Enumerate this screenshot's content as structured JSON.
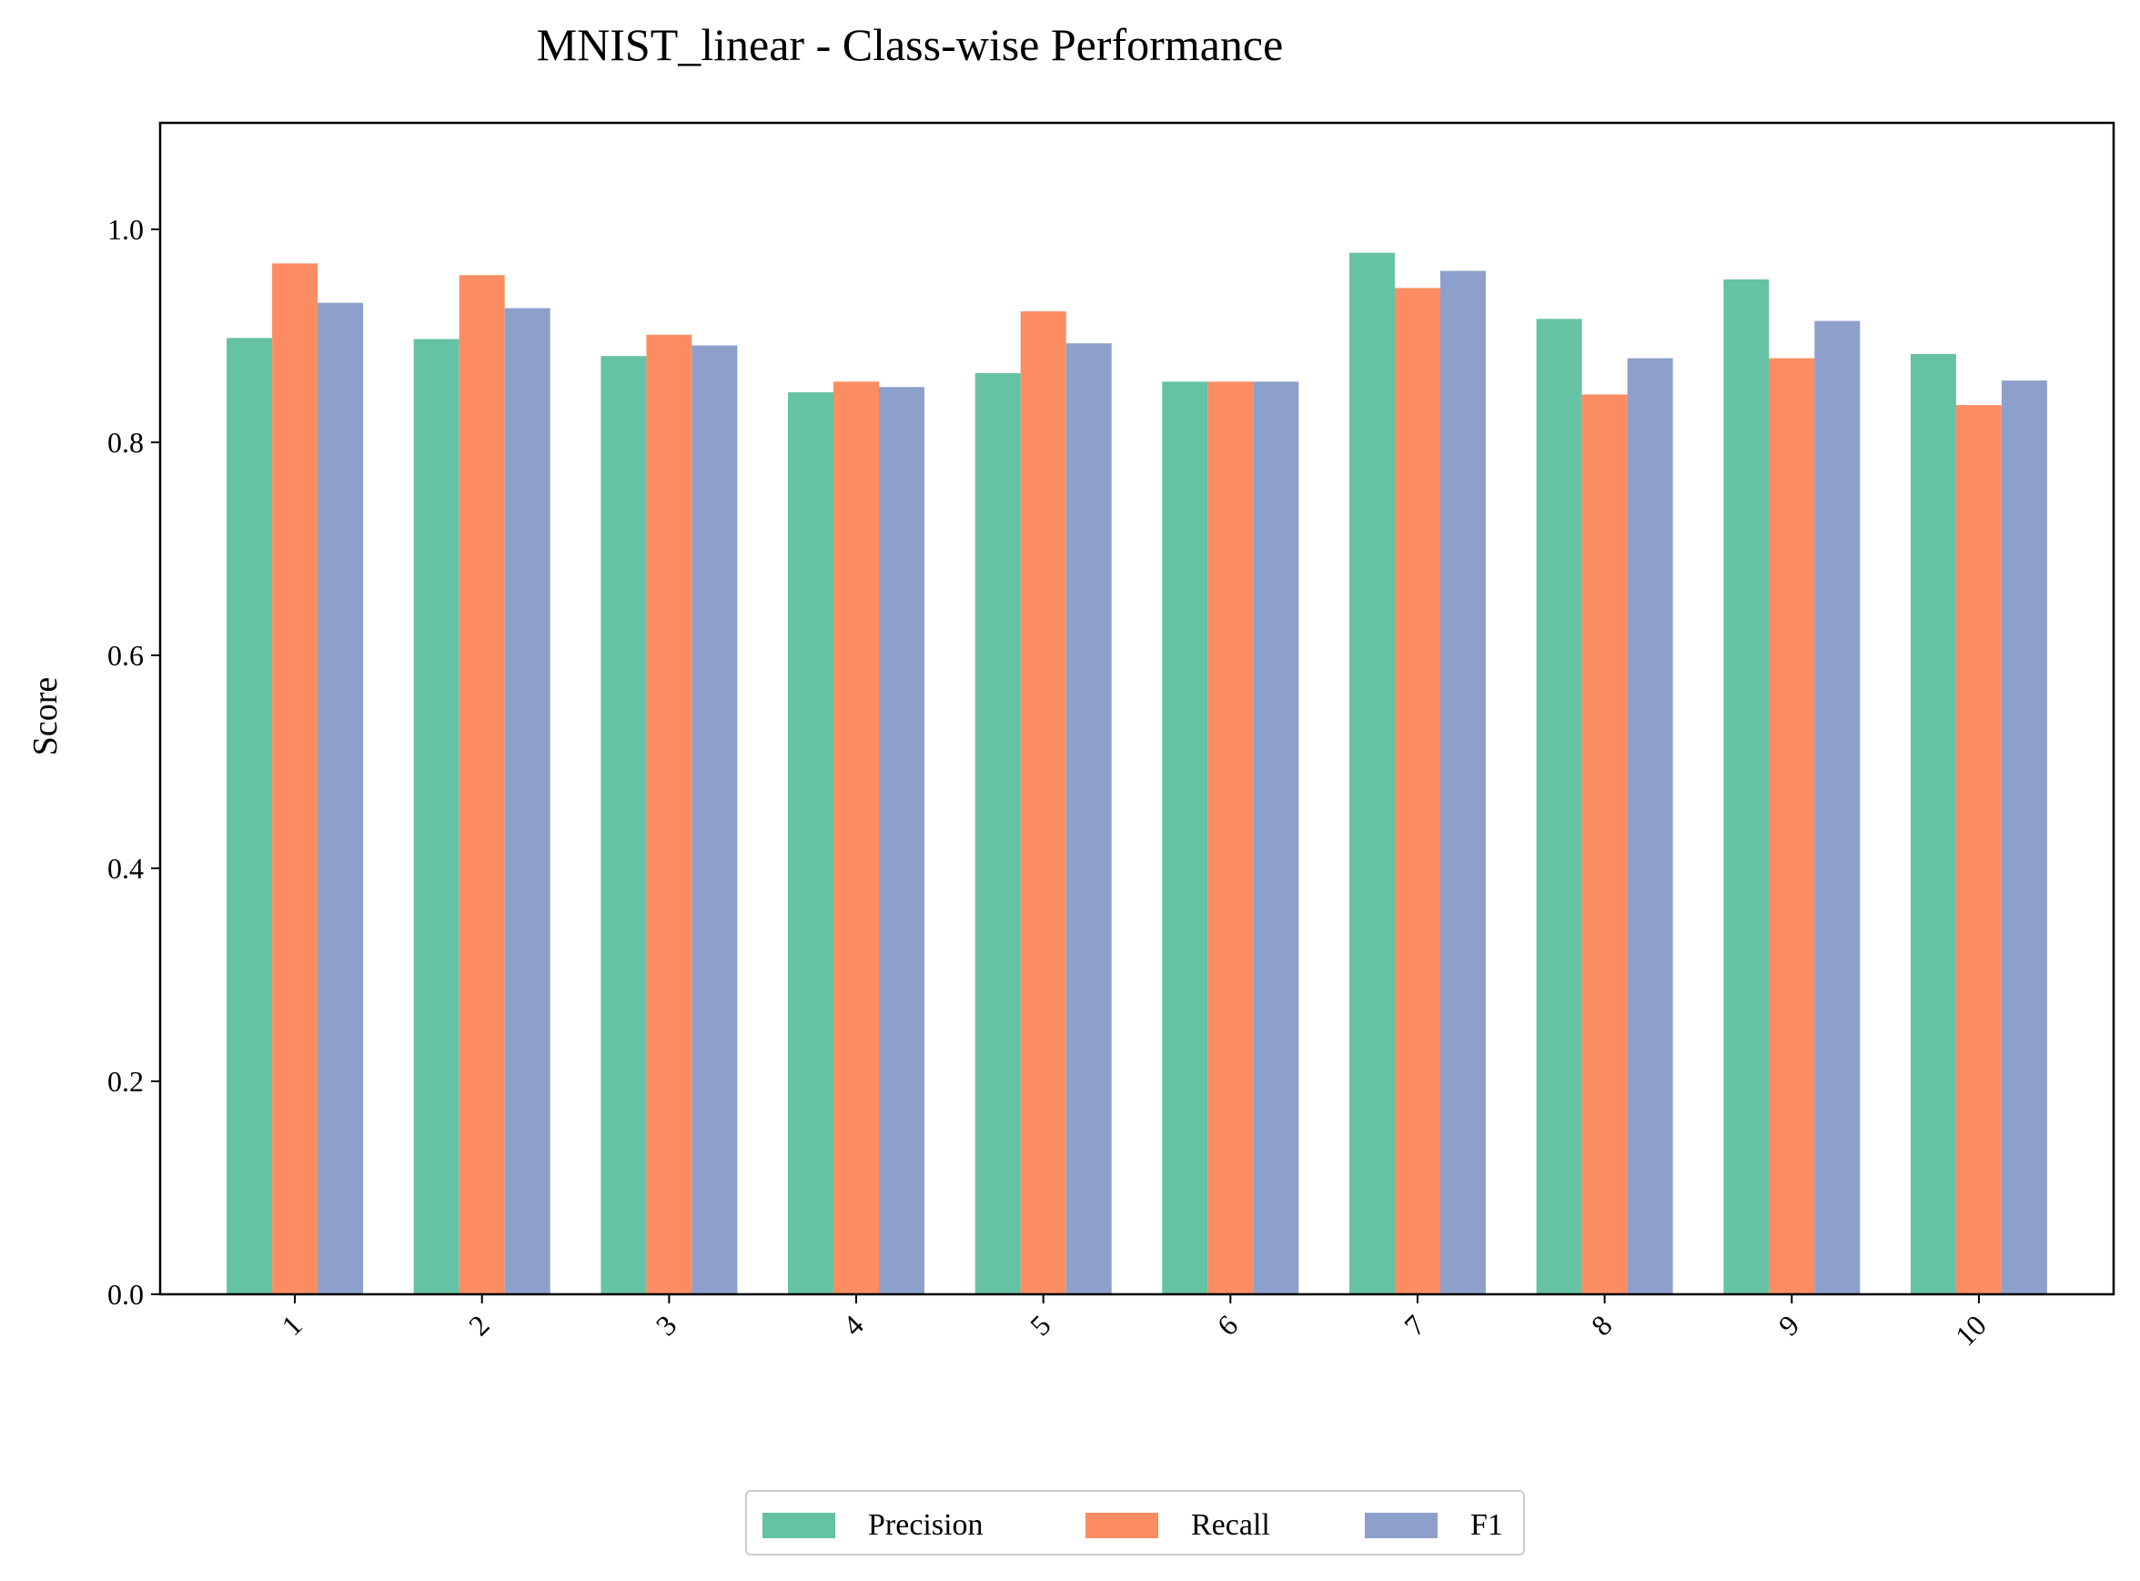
{
  "chart_data": {
    "type": "bar",
    "title": "MNIST_linear - Class-wise Performance",
    "xlabel": "",
    "ylabel": "Score",
    "ylim": [
      0,
      1.1
    ],
    "yticks": [
      0.0,
      0.2,
      0.4,
      0.6,
      0.8,
      1.0
    ],
    "ytick_labels": [
      "0.0",
      "0.2",
      "0.4",
      "0.6",
      "0.8",
      "1.0"
    ],
    "categories": [
      "1",
      "2",
      "3",
      "4",
      "5",
      "6",
      "7",
      "8",
      "9",
      "10"
    ],
    "series": [
      {
        "name": "Precision",
        "color": "#66c2a5",
        "values": [
          0.898,
          0.897,
          0.881,
          0.847,
          0.865,
          0.857,
          0.978,
          0.916,
          0.953,
          0.883
        ]
      },
      {
        "name": "Recall",
        "color": "#fc8d62",
        "values": [
          0.968,
          0.957,
          0.901,
          0.857,
          0.923,
          0.857,
          0.945,
          0.845,
          0.879,
          0.835
        ]
      },
      {
        "name": "F1",
        "color": "#8da0cb",
        "values": [
          0.931,
          0.926,
          0.891,
          0.852,
          0.893,
          0.857,
          0.961,
          0.879,
          0.914,
          0.858
        ]
      }
    ],
    "grid": false,
    "legend_position": "bottom-center",
    "xtick_rotation": "45"
  }
}
